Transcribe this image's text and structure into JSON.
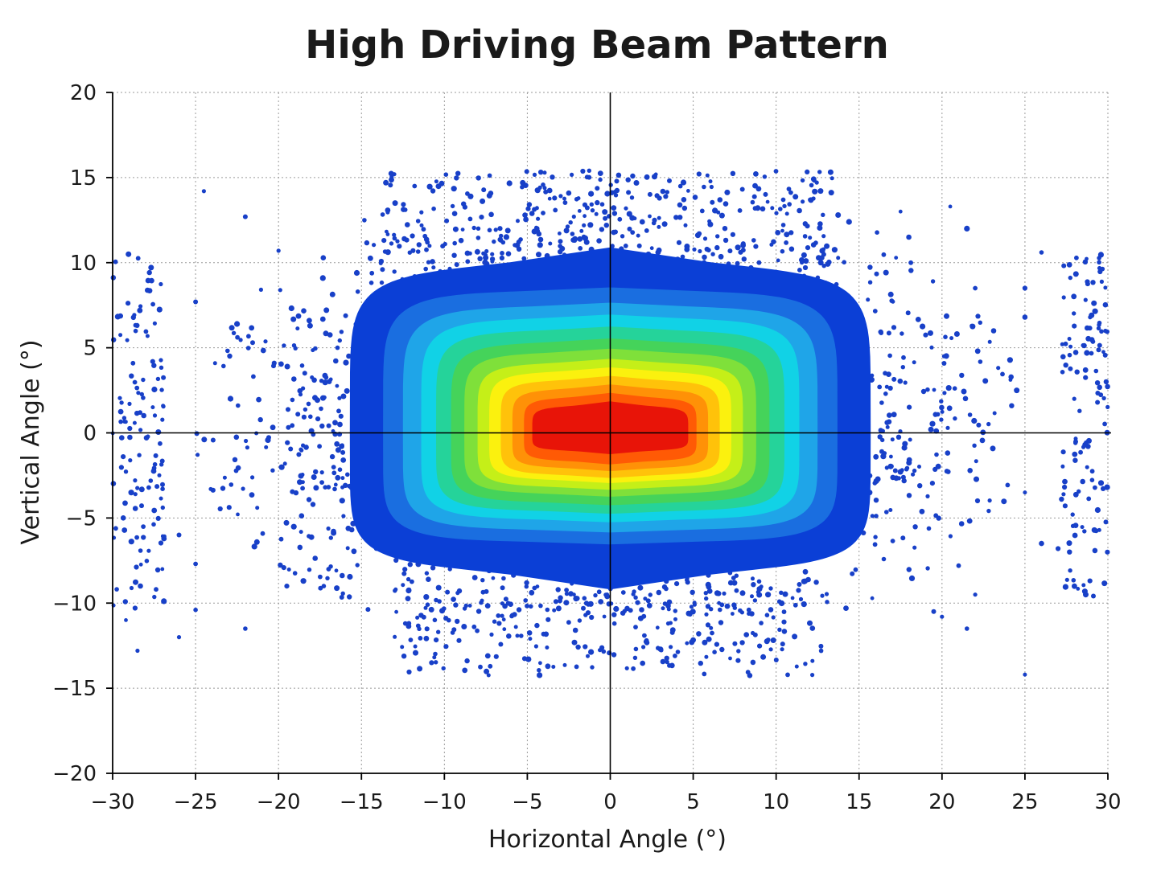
{
  "chart_data": {
    "type": "heatmap",
    "title": "High Driving Beam Pattern",
    "xlabel": "Horizontal Angle (°)",
    "ylabel": "Vertical Angle (°)",
    "xlim": [
      -30,
      30
    ],
    "ylim": [
      -20,
      20
    ],
    "x_ticks": [
      "−30",
      "−25",
      "−20",
      "−15",
      "−10",
      "−5",
      "0",
      "5",
      "10",
      "15",
      "20",
      "25",
      "30"
    ],
    "y_ticks": [
      "20",
      "15",
      "10",
      "5",
      "0",
      "−5",
      "−10",
      "−15",
      "−20"
    ],
    "grid": true,
    "reference_lines": {
      "horizontal_at": 0,
      "vertical_at": 0
    },
    "colors": {
      "outer_blue": "#0b3fd6",
      "blue": "#1a6ee0",
      "light_blue": "#1fa5e8",
      "cyan": "#11d2e6",
      "teal_green": "#25d39a",
      "green": "#45d35a",
      "light_green": "#7fe03a",
      "yellow_green": "#c5ef18",
      "yellow": "#fbf10e",
      "gold": "#ffc20a",
      "orange": "#ff9107",
      "dark_orange": "#ff5a05",
      "red": "#e81408",
      "scatter_points": "#1840c8"
    },
    "contour_levels": [
      {
        "name": "outer_blue",
        "half_width": 15.7,
        "top": 9.5,
        "bottom": -7.8
      },
      {
        "name": "blue",
        "half_width": 13.7,
        "top": 8.2,
        "bottom": -6.3
      },
      {
        "name": "light_blue",
        "half_width": 12.5,
        "top": 7.3,
        "bottom": -5.6
      },
      {
        "name": "cyan",
        "half_width": 11.4,
        "top": 6.6,
        "bottom": -5.0
      },
      {
        "name": "teal_green",
        "half_width": 10.5,
        "top": 5.9,
        "bottom": -4.5
      },
      {
        "name": "green",
        "half_width": 9.6,
        "top": 5.2,
        "bottom": -4.0
      },
      {
        "name": "light_green",
        "half_width": 8.8,
        "top": 4.6,
        "bottom": -3.5
      },
      {
        "name": "yellow_green",
        "half_width": 8.0,
        "top": 4.0,
        "bottom": -3.1
      },
      {
        "name": "yellow",
        "half_width": 7.3,
        "top": 3.5,
        "bottom": -2.7
      },
      {
        "name": "gold",
        "half_width": 6.6,
        "top": 3.0,
        "bottom": -2.4
      },
      {
        "name": "orange",
        "half_width": 5.9,
        "top": 2.5,
        "bottom": -2.0
      },
      {
        "name": "dark_orange",
        "half_width": 5.2,
        "top": 2.0,
        "bottom": -1.6
      },
      {
        "name": "red",
        "half_width": 4.7,
        "top": 1.5,
        "bottom": -1.0
      }
    ]
  }
}
